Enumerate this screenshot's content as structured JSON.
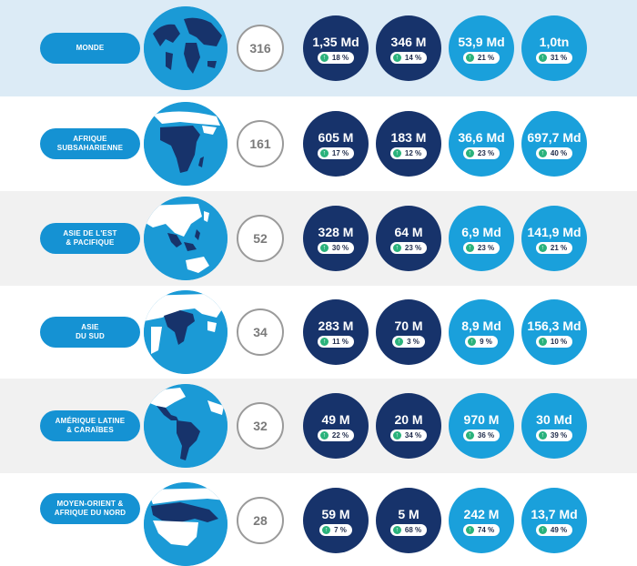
{
  "colors": {
    "region_pill": "#1592d3",
    "dark_circle": "#17336b",
    "light_circle": "#1aa0db",
    "arrow_up": "#2ab27b"
  },
  "rows": [
    {
      "region": "MONDE",
      "count": "316",
      "stats": [
        {
          "value": "1,35 Md",
          "pct": "18 %",
          "style": "dark"
        },
        {
          "value": "346 M",
          "pct": "14 %",
          "style": "dark"
        },
        {
          "value": "53,9 Md",
          "pct": "21 %",
          "style": "light"
        },
        {
          "value": "1,0tn",
          "pct": "31 %",
          "style": "light"
        }
      ]
    },
    {
      "region": "AFRIQUE\nSUBSAHARIENNE",
      "count": "161",
      "stats": [
        {
          "value": "605 M",
          "pct": "17 %",
          "style": "dark"
        },
        {
          "value": "183 M",
          "pct": "12 %",
          "style": "dark"
        },
        {
          "value": "36,6 Md",
          "pct": "23 %",
          "style": "light"
        },
        {
          "value": "697,7 Md",
          "pct": "40 %",
          "style": "light"
        }
      ]
    },
    {
      "region": "ASIE DE L'EST\n& PACIFIQUE",
      "count": "52",
      "stats": [
        {
          "value": "328 M",
          "pct": "30 %",
          "style": "dark"
        },
        {
          "value": "64 M",
          "pct": "23 %",
          "style": "dark"
        },
        {
          "value": "6,9 Md",
          "pct": "23 %",
          "style": "light"
        },
        {
          "value": "141,9 Md",
          "pct": "21 %",
          "style": "light"
        }
      ]
    },
    {
      "region": "ASIE\nDU SUD",
      "count": "34",
      "stats": [
        {
          "value": "283 M",
          "pct": "11 %",
          "style": "dark"
        },
        {
          "value": "70 M",
          "pct": "3 %",
          "style": "dark"
        },
        {
          "value": "8,9 Md",
          "pct": "9 %",
          "style": "light"
        },
        {
          "value": "156,3 Md",
          "pct": "10 %",
          "style": "light"
        }
      ]
    },
    {
      "region": "AMÉRIQUE LATINE\n& CARAÏBES",
      "count": "32",
      "stats": [
        {
          "value": "49 M",
          "pct": "22 %",
          "style": "dark"
        },
        {
          "value": "20 M",
          "pct": "34 %",
          "style": "dark"
        },
        {
          "value": "970 M",
          "pct": "36 %",
          "style": "light"
        },
        {
          "value": "30 Md",
          "pct": "39 %",
          "style": "light"
        }
      ]
    },
    {
      "region": "MOYEN-ORIENT &\nAFRIQUE DU NORD",
      "count": "28",
      "stats": [
        {
          "value": "59 M",
          "pct": "7 %",
          "style": "dark"
        },
        {
          "value": "5 M",
          "pct": "68 %",
          "style": "dark"
        },
        {
          "value": "242 M",
          "pct": "74 %",
          "style": "light"
        },
        {
          "value": "13,7 Md",
          "pct": "49 %",
          "style": "light"
        }
      ]
    }
  ]
}
